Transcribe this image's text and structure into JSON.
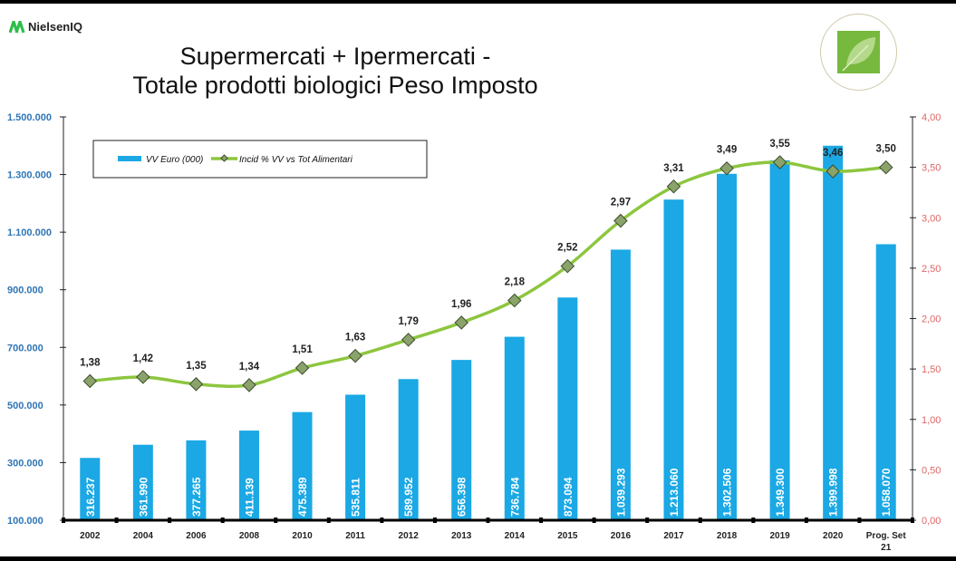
{
  "brand": {
    "name": "NielsenIQ"
  },
  "title_line1": "Supermercati + Ipermercati -",
  "title_line2": "Totale prodotti biologici Peso Imposto",
  "colors": {
    "bar": "#1ba8e4",
    "line": "#8dc63f",
    "marker": "#8aa36a",
    "left_axis": "#2e75b6",
    "right_axis": "#e06666"
  },
  "chart_data": {
    "type": "bar",
    "categories": [
      "2002",
      "2004",
      "2006",
      "2008",
      "2010",
      "2011",
      "2012",
      "2013",
      "2014",
      "2015",
      "2016",
      "2017",
      "2018",
      "2019",
      "2020",
      "Prog. Set 21"
    ],
    "series": [
      {
        "name": "VV Euro (000)",
        "type": "bar",
        "axis": "left",
        "values": [
          316237,
          361990,
          377265,
          411139,
          475389,
          535811,
          589952,
          656398,
          736784,
          873094,
          1039293,
          1213060,
          1302506,
          1349300,
          1399998,
          1058070
        ],
        "labels": [
          "316.237",
          "361.990",
          "377.265",
          "411.139",
          "475.389",
          "535.811",
          "589.952",
          "656.398",
          "736.784",
          "873.094",
          "1.039.293",
          "1.213.060",
          "1.302.506",
          "1.349.300",
          "1.399.998",
          "1.058.070"
        ]
      },
      {
        "name": "Incid % VV vs Tot Alimentari",
        "type": "line",
        "axis": "right",
        "values": [
          1.38,
          1.42,
          1.35,
          1.34,
          1.51,
          1.63,
          1.79,
          1.96,
          2.18,
          2.52,
          2.97,
          3.31,
          3.49,
          3.55,
          3.46,
          3.5
        ],
        "labels": [
          "1,38",
          "1,42",
          "1,35",
          "1,34",
          "1,51",
          "1,63",
          "1,79",
          "1,96",
          "2,18",
          "2,52",
          "2,97",
          "3,31",
          "3,49",
          "3,55",
          "3,46",
          "3,50"
        ]
      }
    ],
    "left_axis": {
      "range": [
        100000,
        1500000
      ],
      "ticks": [
        100000,
        300000,
        500000,
        700000,
        900000,
        1100000,
        1300000,
        1500000
      ],
      "tick_labels": [
        "100.000",
        "300.000",
        "500.000",
        "700.000",
        "900.000",
        "1.100.000",
        "1.300.000",
        "1.500.000"
      ]
    },
    "right_axis": {
      "range": [
        0,
        4
      ],
      "ticks": [
        0,
        0.5,
        1,
        1.5,
        2,
        2.5,
        3,
        3.5,
        4
      ],
      "tick_labels": [
        "0,00",
        "0,50",
        "1,00",
        "1,50",
        "2,00",
        "2,50",
        "3,00",
        "3,50",
        "4,00"
      ]
    },
    "legend": {
      "placement": "top-left",
      "entries": [
        "VV Euro (000)",
        "Incid % VV vs Tot Alimentari"
      ]
    },
    "grid": false
  }
}
